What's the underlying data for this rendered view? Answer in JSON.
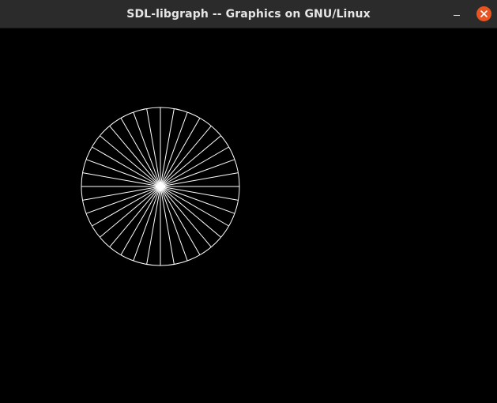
{
  "window": {
    "title": "SDL-libgraph -- Graphics on GNU/Linux",
    "controls": {
      "minimize_icon": "minimize-icon",
      "close_icon": "close-icon",
      "close_color": "#e95420"
    }
  },
  "canvas": {
    "background": "#000000",
    "drawing": {
      "shape": "circle-with-spokes",
      "stroke_color": "#ffffff",
      "spoke_count": 36
    }
  }
}
